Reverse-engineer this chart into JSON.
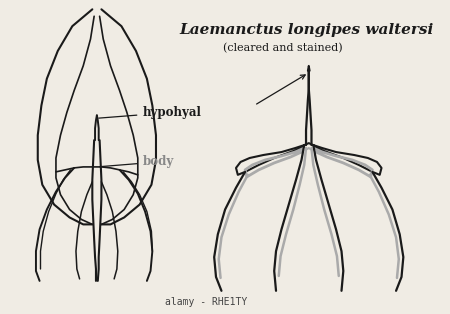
{
  "bg_color": "#f0ece4",
  "line_color": "#1a1a1a",
  "gray_color": "#888888",
  "light_gray": "#aaaaaa",
  "title_text": "Laemanctus longipes waltersi",
  "subtitle_text": "(cleared and stained)",
  "label_hypohyal": "hypohyal",
  "label_body": "body",
  "watermark": "alamy - RHE1TY",
  "title_fontsize": 11,
  "subtitle_fontsize": 8,
  "label_fontsize": 8.5,
  "fig_width": 4.5,
  "fig_height": 3.14,
  "fig_dpi": 100
}
